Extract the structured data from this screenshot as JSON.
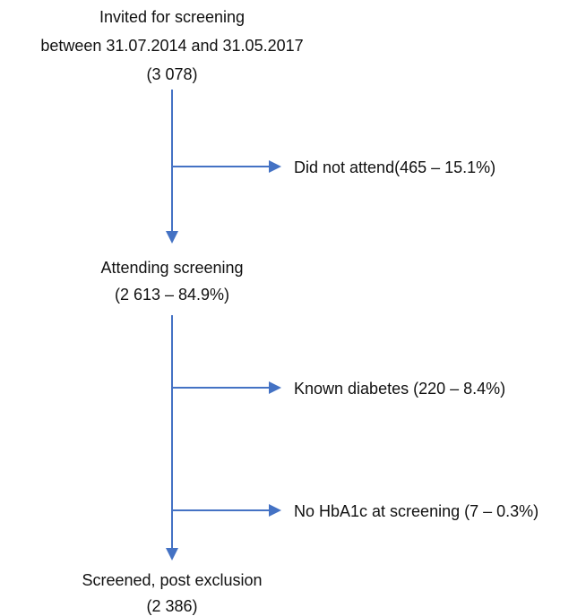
{
  "nodes": [
    {
      "lines": [
        "Invited for screening",
        "between 31.07.2014 and 31.05.2017",
        "(3 078)"
      ]
    },
    {
      "lines": [
        "Attending screening",
        "(2 613 – 84.9%)"
      ]
    },
    {
      "lines": [
        "Screened, post exclusion",
        "(2 386)"
      ]
    }
  ],
  "exclusions": [
    "Did not attend(465 – 15.1%)",
    "Known diabetes (220 – 8.4%)",
    "No HbA1c at screening (7 – 0.3%)"
  ]
}
